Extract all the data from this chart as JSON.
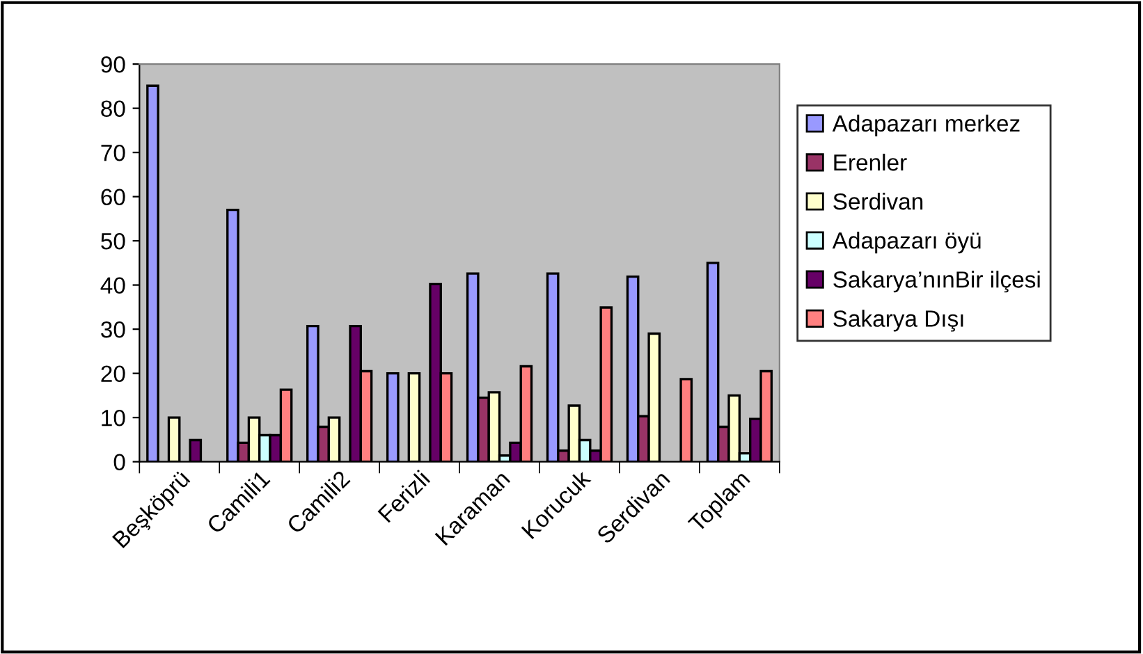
{
  "chart_data": {
    "type": "bar",
    "categories": [
      "Beşköprü",
      "Camili1",
      "Camili2",
      "Ferizli",
      "Karaman",
      "Korucuk",
      "Serdivan",
      "Toplam"
    ],
    "series": [
      {
        "name": "Adapazarı merkez",
        "color": "#9999ff",
        "values": [
          85.1,
          57,
          30.7,
          20,
          42.6,
          42.6,
          41.9,
          45
        ]
      },
      {
        "name": "Erenler",
        "color": "#993366",
        "values": [
          null,
          4.3,
          7.9,
          null,
          14.5,
          2.5,
          10.3,
          7.9
        ]
      },
      {
        "name": "Serdivan",
        "color": "#ffffcc",
        "values": [
          10,
          10,
          10,
          20,
          15.7,
          12.7,
          29,
          15
        ]
      },
      {
        "name": "Adapazarı öyü",
        "color": "#ccffff",
        "values": [
          null,
          6,
          null,
          null,
          1.4,
          4.9,
          null,
          1.9
        ]
      },
      {
        "name": "Sakarya’nınBir ilçesi",
        "color": "#660066",
        "values": [
          4.9,
          6,
          30.7,
          40.2,
          4.3,
          2.5,
          null,
          9.7
        ]
      },
      {
        "name": "Sakarya Dışı",
        "color": "#ff8080",
        "values": [
          null,
          16.3,
          20.5,
          20,
          21.6,
          34.9,
          18.7,
          20.5
        ]
      }
    ],
    "ylim": [
      0,
      90
    ],
    "yticks": [
      0,
      10,
      20,
      30,
      40,
      50,
      60,
      70,
      80,
      90
    ],
    "grid": false,
    "legend": "right"
  }
}
